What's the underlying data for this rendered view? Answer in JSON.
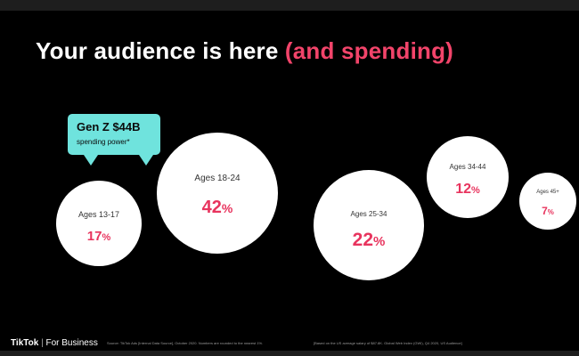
{
  "title": {
    "main": "Your audience is here ",
    "accent": "(and spending)"
  },
  "callout": {
    "title": "Gen Z $44B",
    "subtitle": "spending power*"
  },
  "footer": {
    "logo_brand": "TikTok",
    "logo_separator": "|",
    "logo_suffix": "For Business",
    "source": "Source: TikTok Ads [Internal Data Source], October 2020. Numbers are rounded to the nearest 1%.",
    "note": "[Based on the US average salary of $87.8K. Global Web Index (GWI), Q4 2020, US Audience]"
  },
  "colors": {
    "accent": "#f2446a",
    "value": "#e8345e",
    "callout": "#6fe3dd"
  },
  "chart_data": {
    "type": "bubble",
    "categories": [
      "Ages 13-17",
      "Ages 18-24",
      "Ages 25-34",
      "Ages 34-44",
      "Ages 45+"
    ],
    "values": [
      17,
      42,
      22,
      12,
      7
    ],
    "value_labels": [
      "17%",
      "42%",
      "22%",
      "12%",
      "7%"
    ],
    "unit": "%"
  }
}
